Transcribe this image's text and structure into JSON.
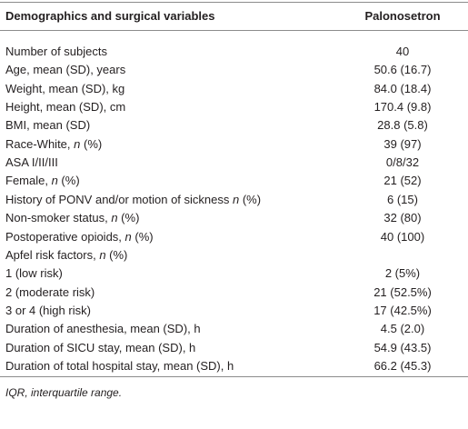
{
  "table": {
    "header": [
      "Demographics and surgical variables",
      "Palonosetron"
    ],
    "rows": [
      [
        [
          "Number of subjects"
        ],
        "40"
      ],
      [
        [
          "Age, mean (SD), years"
        ],
        "50.6 (16.7)"
      ],
      [
        [
          "Weight, mean (SD), kg"
        ],
        "84.0 (18.4)"
      ],
      [
        [
          "Height, mean (SD), cm"
        ],
        "170.4 (9.8)"
      ],
      [
        [
          "BMI, mean (SD)"
        ],
        "28.8 (5.8)"
      ],
      [
        [
          "Race-White, ",
          "n",
          " (%)"
        ],
        "39 (97)"
      ],
      [
        [
          "ASA I/II/III"
        ],
        "0/8/32"
      ],
      [
        [
          "Female, ",
          "n",
          " (%)"
        ],
        "21 (52)"
      ],
      [
        [
          "History of PONV and/or motion of sickness ",
          "n",
          " (%)"
        ],
        "6 (15)"
      ],
      [
        [
          "Non-smoker status, ",
          "n",
          " (%)"
        ],
        "32 (80)"
      ],
      [
        [
          "Postoperative opioids, ",
          "n",
          " (%)"
        ],
        "40 (100)"
      ],
      [
        [
          "Apfel risk factors, ",
          "n",
          " (%)"
        ],
        null
      ],
      [
        [
          "1 (low risk)"
        ],
        "2 (5%)"
      ],
      [
        [
          "2 (moderate risk)"
        ],
        "21 (52.5%)"
      ],
      [
        [
          "3 or 4 (high risk)"
        ],
        "17 (42.5%)"
      ],
      [
        [
          "Duration of anesthesia, mean (SD), h"
        ],
        "4.5 (2.0)"
      ],
      [
        [
          "Duration of SICU stay, mean (SD), h"
        ],
        "54.9 (43.5)"
      ],
      [
        [
          "Duration of total hospital stay, mean (SD), h"
        ],
        "66.2 (45.3)"
      ]
    ],
    "footnote": "IQR, interquartile range."
  }
}
